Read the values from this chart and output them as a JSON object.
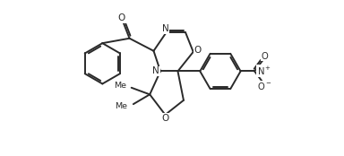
{
  "bg_color": "#ffffff",
  "bond_color": "#2a2a2a",
  "line_width": 1.4,
  "figsize": [
    3.84,
    1.74
  ],
  "dpi": 100,
  "xlim": [
    0,
    10.5
  ],
  "ylim": [
    1.0,
    9.0
  ]
}
